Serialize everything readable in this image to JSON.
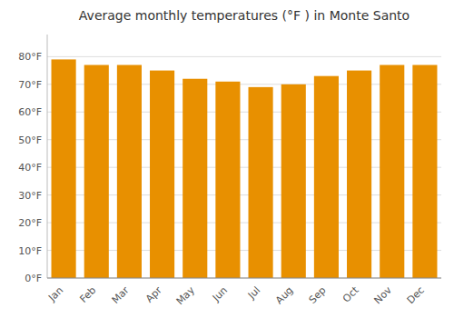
{
  "chart_data": {
    "type": "bar",
    "title": "Average monthly temperatures (°F ) in Monte Santo",
    "categories": [
      "Jan",
      "Feb",
      "Mar",
      "Apr",
      "May",
      "Jun",
      "Jul",
      "Aug",
      "Sep",
      "Oct",
      "Nov",
      "Dec"
    ],
    "values": [
      79,
      77,
      77,
      75,
      72,
      71,
      69,
      70,
      73,
      75,
      77,
      77
    ],
    "color": "#E89000",
    "ylim": [
      0,
      88
    ],
    "yticks": [
      {
        "value": 0,
        "label": "0°F"
      },
      {
        "value": 10,
        "label": "10°F"
      },
      {
        "value": 20,
        "label": "20°F"
      },
      {
        "value": 30,
        "label": "30°F"
      },
      {
        "value": 40,
        "label": "40°F"
      },
      {
        "value": 50,
        "label": "50°F"
      },
      {
        "value": 60,
        "label": "60°F"
      },
      {
        "value": 70,
        "label": "70°F"
      },
      {
        "value": 80,
        "label": "80°F"
      }
    ],
    "grid": true
  }
}
